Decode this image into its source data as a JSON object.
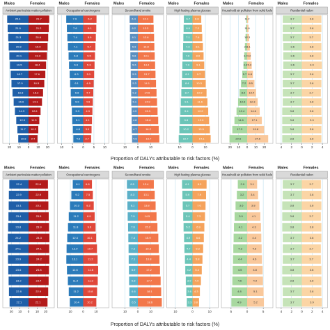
{
  "chart_data": [
    {
      "type": "pyramid",
      "title": "Ambient particulate matter pollution",
      "xlim": [
        -27,
        27
      ],
      "xticks": [
        {
          "value": -20,
          "label": "20"
        },
        {
          "value": -10,
          "label": "10"
        },
        0,
        10,
        20
      ],
      "series": [
        {
          "name": "Males",
          "color": "#1f5fa8",
          "values": [
            22.4,
            21.9,
            21.3,
            20.8,
            20.1,
            19.5,
            18.7,
            17.9,
            16.8,
            15.6,
            14.3,
            12.9,
            11.7,
            10.8
          ]
        },
        {
          "name": "Females",
          "color": "#b31b1b",
          "values": [
            21.7,
            21.2,
            20.6,
            19.9,
            19.3,
            18.4,
            17.6,
            16.5,
            15.2,
            14.1,
            12.6,
            11.3,
            10.2,
            9.4
          ]
        }
      ]
    },
    {
      "type": "pyramid",
      "title": "Occupational carcinogens",
      "xlim": [
        -12,
        12
      ],
      "xticks": [
        {
          "value": -10,
          "label": "10"
        },
        {
          "value": -5,
          "label": "5"
        },
        0,
        5,
        10
      ],
      "series": [
        {
          "name": "Males",
          "color": "#2b7bba",
          "values": [
            7.9,
            7.6,
            7.4,
            7.1,
            6.8,
            6.6,
            6.3,
            6.1,
            5.8,
            5.6,
            5.3,
            5.1,
            4.8,
            4.6
          ]
        },
        {
          "name": "Females",
          "color": "#e0483a",
          "values": [
            6.2,
            6.1,
            5.9,
            5.7,
            5.5,
            5.3,
            5.1,
            4.9,
            4.7,
            4.5,
            4.3,
            4.1,
            3.9,
            3.7
          ]
        }
      ]
    },
    {
      "type": "pyramid",
      "title": "Secondhand smoke",
      "xlim": [
        -20,
        20
      ],
      "xticks": [
        {
          "value": -10,
          "label": "10"
        },
        0,
        10
      ],
      "series": [
        {
          "name": "Males",
          "color": "#5b8fc0",
          "values": [
            6.4,
            6.2,
            6.1,
            5.9,
            5.8,
            5.6,
            5.5,
            5.3,
            5.2,
            5.1,
            4.9,
            4.8,
            4.7,
            4.5
          ]
        },
        {
          "name": "Females",
          "color": "#f2774a",
          "values": [
            12.1,
            12.3,
            12.6,
            12.8,
            13.1,
            13.4,
            13.7,
            14.1,
            14.5,
            14.9,
            15.3,
            15.8,
            16.2,
            16.7
          ]
        }
      ]
    },
    {
      "type": "pyramid",
      "title": "High fasting plasma glucose",
      "xlim": [
        -20,
        20
      ],
      "xticks": [
        {
          "value": -10,
          "label": "10"
        },
        0,
        10
      ],
      "series": [
        {
          "name": "Males",
          "color": "#6cc5b8",
          "values": [
            6.7,
            6.9,
            7.1,
            7.3,
            7.6,
            7.9,
            8.1,
            8.4,
            8.7,
            9.1,
            9.4,
            9.8,
            10.2,
            10.7
          ]
        },
        {
          "name": "Females",
          "color": "#f5a35c",
          "values": [
            6.8,
            7.2,
            7.6,
            8.1,
            8.6,
            9.1,
            9.7,
            10.3,
            10.9,
            11.6,
            12.2,
            12.9,
            13.5,
            14.1
          ]
        }
      ]
    },
    {
      "type": "pyramid",
      "title": "Household air pollution from solid fuels",
      "xlim": [
        -30,
        30
      ],
      "xticks": [
        {
          "value": -20,
          "label": "20"
        },
        {
          "value": -10,
          "label": "10"
        },
        0,
        10,
        20
      ],
      "series": [
        {
          "name": "Males",
          "color": "#a8d8a0",
          "values": [
            1.1,
            1.4,
            1.9,
            2.6,
            3.4,
            4.3,
            5.7,
            7.2,
            8.9,
            10.6,
            12.4,
            14.8,
            17.3,
            20.6
          ]
        },
        {
          "name": "Females",
          "color": "#f9c89b",
          "values": [
            1.2,
            1.6,
            2.3,
            3.1,
            4.2,
            5.3,
            6.8,
            8.5,
            10.4,
            12.3,
            14.6,
            17.1,
            19.8,
            24.5
          ]
        }
      ]
    },
    {
      "type": "pyramid",
      "title": "Residential radon",
      "xlim": [
        -5,
        5
      ],
      "xticks": [
        {
          "value": -4,
          "label": "4"
        },
        {
          "value": -2,
          "label": "2"
        },
        0,
        2,
        4
      ],
      "series": [
        {
          "name": "Males",
          "color": "#c5e3b8",
          "values": [
            3.7,
            3.7,
            3.7,
            3.6,
            3.6,
            3.6,
            3.7,
            3.7,
            3.7,
            3.7,
            3.8,
            3.8,
            3.8,
            3.8
          ]
        },
        {
          "name": "Females",
          "color": "#fbd5a5",
          "values": [
            3.8,
            3.8,
            3.7,
            3.8,
            3.8,
            3.9,
            3.8,
            3.8,
            3.7,
            3.8,
            3.8,
            3.9,
            3.8,
            3.8
          ]
        }
      ]
    },
    {
      "type": "pyramid",
      "title": "Ambient particulate matter pollution",
      "xlim": [
        -30,
        30
      ],
      "xticks": [
        {
          "value": -20,
          "label": "20"
        },
        {
          "value": -10,
          "label": "10"
        },
        0,
        10,
        20
      ],
      "series": [
        {
          "name": "Males",
          "color": "#1f5fa8",
          "values": [
            22.4,
            22.9,
            23.1,
            23.4,
            23.8,
            24.2,
            24.1,
            23.9,
            23.6,
            23.2,
            22.8,
            22.1
          ]
        },
        {
          "name": "Females",
          "color": "#b31b1b",
          "values": [
            22.6,
            22.9,
            23.1,
            23.5,
            23.9,
            24.3,
            24.1,
            24.2,
            23.8,
            23.4,
            22.9,
            22.1
          ]
        }
      ]
    },
    {
      "type": "pyramid",
      "title": "Occupational carcinogens",
      "xlim": [
        -20,
        20
      ],
      "xticks": [
        {
          "value": -10,
          "label": "10"
        },
        0,
        10
      ],
      "series": [
        {
          "name": "Males",
          "color": "#2b7bba",
          "values": [
            8.1,
            9.2,
            10.3,
            11.2,
            11.8,
            12.4,
            12.9,
            13.1,
            12.6,
            11.9,
            11.2,
            10.4
          ]
        },
        {
          "name": "Females",
          "color": "#e0483a",
          "values": [
            6.8,
            7.5,
            8.2,
            8.9,
            9.6,
            10.1,
            10.7,
            11.2,
            11.6,
            11.3,
            10.8,
            10.2
          ]
        }
      ]
    },
    {
      "type": "pyramid",
      "title": "Secondhand smoke",
      "xlim": [
        -20,
        20
      ],
      "xticks": [
        {
          "value": -10,
          "label": "10"
        },
        0,
        10
      ],
      "series": [
        {
          "name": "Males",
          "color": "#5bb0c8",
          "values": [
            8.5,
            8.3,
            8.1,
            7.9,
            7.6,
            7.4,
            7.2,
            7.1,
            6.9,
            6.8,
            6.6,
            6.5
          ]
        },
        {
          "name": "Females",
          "color": "#f2774a",
          "values": [
            12.4,
            13.1,
            13.8,
            14.5,
            15.2,
            15.9,
            16.3,
            16.8,
            17.2,
            17.7,
            18.1,
            18.6
          ]
        }
      ]
    },
    {
      "type": "pyramid",
      "title": "High fasting plasma glucose",
      "xlim": [
        -15,
        15
      ],
      "xticks": [
        {
          "value": -10,
          "label": "10"
        },
        0,
        10
      ],
      "series": [
        {
          "name": "Males",
          "color": "#6cc5b8",
          "values": [
            6.1,
            5.9,
            5.7,
            5.4,
            5.2,
            4.9,
            4.7,
            4.4,
            4.2,
            3.9,
            3.6,
            3.3
          ]
        },
        {
          "name": "Females",
          "color": "#f5a35c",
          "values": [
            8.2,
            7.9,
            7.6,
            7.3,
            6.9,
            6.6,
            6.2,
            5.8,
            5.4,
            4.9,
            4.3,
            3.8
          ]
        }
      ]
    },
    {
      "type": "pyramid",
      "title": "Household air pollution from solid fuels",
      "xlim": [
        -8,
        8
      ],
      "xticks": [
        {
          "value": -5,
          "label": "5"
        },
        0,
        5
      ],
      "series": [
        {
          "name": "Males",
          "color": "#a8d8a0",
          "values": [
            2.9,
            3.2,
            3.6,
            3.9,
            4.1,
            4.2,
            4.3,
            4.4,
            4.5,
            4.6,
            4.8,
            4.9
          ]
        },
        {
          "name": "Females",
          "color": "#f9c89b",
          "values": [
            3.1,
            3.4,
            3.8,
            4.1,
            4.3,
            4.4,
            4.5,
            4.6,
            4.8,
            4.9,
            5.1,
            5.2
          ]
        }
      ]
    },
    {
      "type": "pyramid",
      "title": "Residential radon",
      "xlim": [
        -5,
        5
      ],
      "xticks": [
        {
          "value": -4,
          "label": "4"
        },
        {
          "value": -2,
          "label": "2"
        },
        0,
        2,
        4
      ],
      "series": [
        {
          "name": "Males",
          "color": "#c5e3b8",
          "values": [
            3.7,
            3.7,
            3.8,
            3.8,
            3.8,
            3.7,
            3.7,
            3.7,
            3.8,
            3.8,
            3.7,
            3.7
          ]
        },
        {
          "name": "Females",
          "color": "#fbd5a5",
          "values": [
            3.7,
            3.8,
            3.8,
            3.7,
            3.8,
            3.8,
            3.7,
            3.7,
            3.8,
            3.8,
            3.8,
            3.9
          ]
        }
      ]
    }
  ],
  "axis_labels": [
    "Proportion of DALYs attributable to risk factors (%)",
    "Proportion of DALYs attributable to risk factors (%)"
  ]
}
